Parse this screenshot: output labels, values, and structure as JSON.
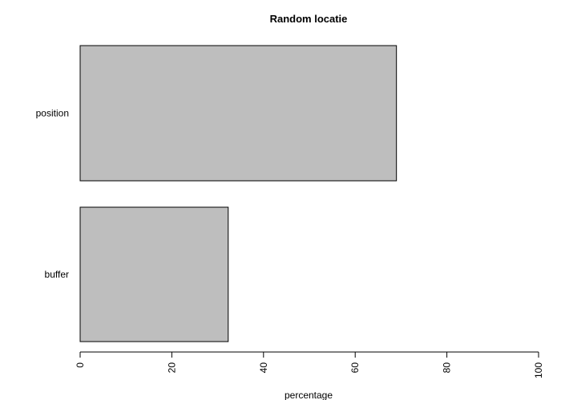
{
  "chart_data": {
    "type": "bar",
    "orientation": "horizontal",
    "title": "Random locatie",
    "xlabel": "percentage",
    "ylabel": "",
    "categories": [
      "position",
      "buffer"
    ],
    "values": [
      69,
      32.3
    ],
    "xlim": [
      0,
      100
    ],
    "x_ticks": [
      0,
      20,
      40,
      60,
      80,
      100
    ],
    "bar_color": "#bebebe",
    "bar_border_color": "#000000",
    "grid": false,
    "legend": "none"
  }
}
